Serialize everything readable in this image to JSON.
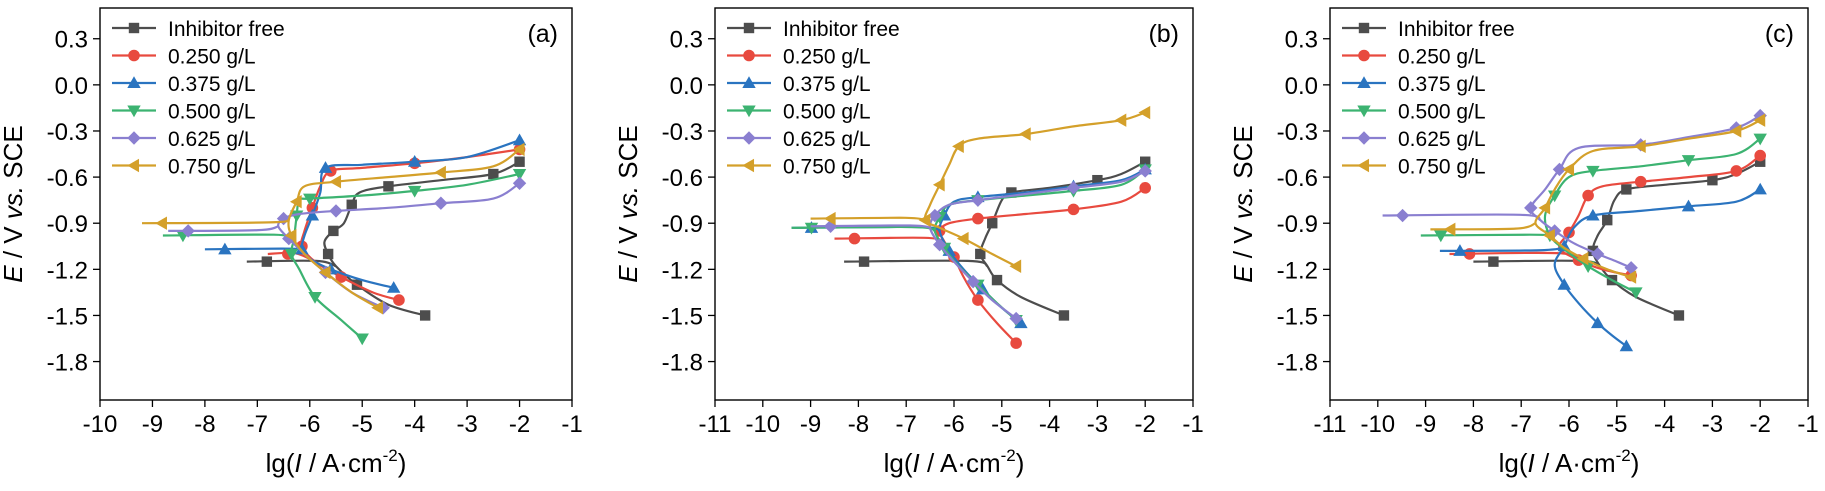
{
  "chart_data": [
    {
      "type": "line",
      "panel_label": "(a)",
      "xlabel": "lg(I / A·cm⁻²)",
      "xlabel_parts": [
        "lg(",
        "I",
        " / A·cm",
        "-2",
        ")"
      ],
      "ylabel": "E / V vs. SCE",
      "ylabel_parts": [
        "E",
        " / V ",
        "vs.",
        " SCE"
      ],
      "xlim": [
        -10,
        -1
      ],
      "ylim": [
        -2.05,
        0.5
      ],
      "xticks": [
        -10,
        -9,
        -8,
        -7,
        -6,
        -5,
        -4,
        -3,
        -2,
        -1
      ],
      "yticks": [
        0.3,
        0.0,
        -0.3,
        -0.6,
        -0.9,
        -1.2,
        -1.5,
        -1.8
      ],
      "ytick_labels": [
        "0.3",
        "0.0",
        "-0.3",
        "-0.6",
        "-0.9",
        "-1.2",
        "-1.5",
        "-1.8"
      ],
      "legend_position": "top-left",
      "series": [
        {
          "name": "Inhibitor free",
          "color": "#4d4d4d",
          "marker": "square",
          "x": [
            -3.8,
            -4.5,
            -5.1,
            -5.5,
            -5.65,
            -5.72,
            -5.55,
            -5.35,
            -5.2,
            -5.05,
            -4.5,
            -3.5,
            -2.5,
            -2.0
          ],
          "y": [
            -1.5,
            -1.43,
            -1.3,
            -1.18,
            -1.1,
            -1.02,
            -0.95,
            -0.9,
            -0.78,
            -0.7,
            -0.66,
            -0.62,
            -0.58,
            -0.5
          ],
          "cathodic_end": [
            -7.2,
            -1.15
          ]
        },
        {
          "name": "0.250 g/L",
          "color": "#e84a3f",
          "marker": "circle",
          "x": [
            -4.3,
            -4.8,
            -5.4,
            -5.9,
            -6.15,
            -6.1,
            -5.95,
            -5.8,
            -5.6,
            -5.0,
            -4.0,
            -3.0,
            -2.0
          ],
          "y": [
            -1.4,
            -1.35,
            -1.25,
            -1.15,
            -1.05,
            -0.95,
            -0.8,
            -0.66,
            -0.56,
            -0.54,
            -0.51,
            -0.47,
            -0.42
          ],
          "cathodic_end": [
            -6.8,
            -1.1
          ]
        },
        {
          "name": "0.375 g/L",
          "color": "#2a74c0",
          "marker": "triangle-up",
          "x": [
            -4.4,
            -5.0,
            -5.6,
            -6.0,
            -6.15,
            -6.1,
            -5.95,
            -5.8,
            -5.7,
            -5.0,
            -4.0,
            -3.0,
            -2.0
          ],
          "y": [
            -1.32,
            -1.27,
            -1.2,
            -1.13,
            -1.07,
            -0.98,
            -0.85,
            -0.7,
            -0.54,
            -0.52,
            -0.5,
            -0.47,
            -0.36
          ],
          "cathodic_end": [
            -8.0,
            -1.07
          ]
        },
        {
          "name": "0.500 g/L",
          "color": "#3cb371",
          "marker": "triangle-down",
          "x": [
            -5.0,
            -5.4,
            -5.9,
            -6.2,
            -6.35,
            -6.3,
            -6.25,
            -6.2,
            -6.0,
            -5.0,
            -4.0,
            -3.0,
            -2.0
          ],
          "y": [
            -1.65,
            -1.53,
            -1.38,
            -1.2,
            -1.1,
            -1.0,
            -0.85,
            -0.75,
            -0.74,
            -0.72,
            -0.69,
            -0.65,
            -0.58
          ],
          "cathodic_end": [
            -8.8,
            -0.98
          ]
        },
        {
          "name": "0.625 g/L",
          "color": "#8a7fd0",
          "marker": "diamond",
          "x": [
            -4.6,
            -5.2,
            -5.7,
            -6.1,
            -6.4,
            -6.6,
            -6.5,
            -6.2,
            -5.5,
            -4.5,
            -3.5,
            -2.5,
            -2.0
          ],
          "y": [
            -1.45,
            -1.35,
            -1.22,
            -1.1,
            -1.0,
            -0.92,
            -0.87,
            -0.84,
            -0.82,
            -0.8,
            -0.77,
            -0.74,
            -0.64
          ],
          "cathodic_end": [
            -8.7,
            -0.95
          ]
        },
        {
          "name": "0.750 g/L",
          "color": "#d4a02a",
          "marker": "triangle-left",
          "x": [
            -4.7,
            -5.2,
            -5.7,
            -6.1,
            -6.35,
            -6.4,
            -6.25,
            -6.1,
            -5.5,
            -4.5,
            -3.5,
            -2.5,
            -2.0
          ],
          "y": [
            -1.45,
            -1.35,
            -1.22,
            -1.1,
            -0.98,
            -0.88,
            -0.76,
            -0.66,
            -0.63,
            -0.6,
            -0.57,
            -0.53,
            -0.42
          ],
          "cathodic_end": [
            -9.2,
            -0.9
          ]
        }
      ]
    },
    {
      "type": "line",
      "panel_label": "(b)",
      "xlabel": "lg(I / A·cm⁻²)",
      "xlabel_parts": [
        "lg(",
        "I",
        " / A·cm",
        "-2",
        ")"
      ],
      "ylabel": "E / V vs. SCE",
      "ylabel_parts": [
        "E",
        " / V ",
        "vs.",
        " SCE"
      ],
      "xlim": [
        -11,
        -1
      ],
      "ylim": [
        -2.05,
        0.5
      ],
      "xticks": [
        -11,
        -10,
        -9,
        -8,
        -7,
        -6,
        -5,
        -4,
        -3,
        -2,
        -1
      ],
      "yticks": [
        0.3,
        0.0,
        -0.3,
        -0.6,
        -0.9,
        -1.2,
        -1.5,
        -1.8
      ],
      "ytick_labels": [
        "0.3",
        "0.0",
        "-0.3",
        "-0.6",
        "-0.9",
        "-1.2",
        "-1.5",
        "-1.8"
      ],
      "legend_position": "top-left",
      "series": [
        {
          "name": "Inhibitor free",
          "color": "#4d4d4d",
          "marker": "square",
          "x": [
            -3.7,
            -4.6,
            -5.1,
            -5.3,
            -5.45,
            -5.35,
            -5.2,
            -5.0,
            -4.8,
            -4.0,
            -3.0,
            -2.5,
            -2.0
          ],
          "y": [
            -1.5,
            -1.38,
            -1.27,
            -1.18,
            -1.1,
            -1.0,
            -0.9,
            -0.75,
            -0.7,
            -0.67,
            -0.62,
            -0.58,
            -0.5
          ],
          "cathodic_end": [
            -8.3,
            -1.15
          ]
        },
        {
          "name": "0.250 g/L",
          "color": "#e84a3f",
          "marker": "circle",
          "x": [
            -4.7,
            -5.1,
            -5.5,
            -5.8,
            -6.0,
            -6.2,
            -6.3,
            -6.1,
            -5.5,
            -4.5,
            -3.5,
            -2.5,
            -2.0
          ],
          "y": [
            -1.68,
            -1.55,
            -1.4,
            -1.25,
            -1.12,
            -1.02,
            -0.95,
            -0.9,
            -0.87,
            -0.84,
            -0.81,
            -0.76,
            -0.67
          ],
          "cathodic_end": [
            -8.5,
            -1.0
          ]
        },
        {
          "name": "0.375 g/L",
          "color": "#2a74c0",
          "marker": "triangle-up",
          "x": [
            -4.6,
            -5.0,
            -5.4,
            -5.8,
            -6.1,
            -6.3,
            -6.2,
            -6.0,
            -5.5,
            -4.5,
            -3.5,
            -2.5,
            -2.0
          ],
          "y": [
            -1.55,
            -1.45,
            -1.33,
            -1.2,
            -1.08,
            -0.95,
            -0.85,
            -0.76,
            -0.73,
            -0.7,
            -0.66,
            -0.62,
            -0.55
          ],
          "cathodic_end": [
            -9.4,
            -0.93
          ]
        },
        {
          "name": "0.500 g/L",
          "color": "#3cb371",
          "marker": "triangle-down",
          "x": [
            -4.7,
            -5.1,
            -5.5,
            -5.9,
            -6.2,
            -6.4,
            -6.3,
            -6.1,
            -5.5,
            -4.5,
            -3.5,
            -2.5,
            -2.0
          ],
          "y": [
            -1.53,
            -1.42,
            -1.3,
            -1.18,
            -1.06,
            -0.95,
            -0.86,
            -0.78,
            -0.75,
            -0.72,
            -0.69,
            -0.65,
            -0.55
          ],
          "cathodic_end": [
            -9.4,
            -0.93
          ]
        },
        {
          "name": "0.625 g/L",
          "color": "#8a7fd0",
          "marker": "diamond",
          "x": [
            -4.7,
            -5.2,
            -5.6,
            -6.0,
            -6.3,
            -6.5,
            -6.4,
            -6.1,
            -5.5,
            -4.5,
            -3.5,
            -2.5,
            -2.0
          ],
          "y": [
            -1.52,
            -1.4,
            -1.28,
            -1.15,
            -1.04,
            -0.93,
            -0.85,
            -0.78,
            -0.75,
            -0.71,
            -0.67,
            -0.63,
            -0.56
          ],
          "cathodic_end": [
            -9.0,
            -0.92
          ]
        },
        {
          "name": "0.750 g/L",
          "color": "#d4a02a",
          "marker": "triangle-left",
          "x": [
            -4.7,
            -5.2,
            -5.8,
            -6.3,
            -6.6,
            -6.5,
            -6.3,
            -6.1,
            -5.9,
            -5.5,
            -4.5,
            -3.5,
            -2.5,
            -2.0
          ],
          "y": [
            -1.18,
            -1.1,
            -1.0,
            -0.93,
            -0.88,
            -0.78,
            -0.65,
            -0.52,
            -0.4,
            -0.35,
            -0.32,
            -0.27,
            -0.23,
            -0.18
          ],
          "cathodic_end": [
            -9.0,
            -0.87
          ]
        }
      ]
    },
    {
      "type": "line",
      "panel_label": "(c)",
      "xlabel": "lg(I / A·cm⁻²)",
      "xlabel_parts": [
        "lg(",
        "I",
        " / A·cm",
        "-2",
        ")"
      ],
      "ylabel": "E / V vs. SCE",
      "ylabel_parts": [
        "E",
        " / V ",
        "vs.",
        " SCE"
      ],
      "xlim": [
        -11,
        -1
      ],
      "ylim": [
        -2.05,
        0.5
      ],
      "xticks": [
        -11,
        -10,
        -9,
        -8,
        -7,
        -6,
        -5,
        -4,
        -3,
        -2,
        -1
      ],
      "yticks": [
        0.3,
        0.0,
        -0.3,
        -0.6,
        -0.9,
        -1.2,
        -1.5,
        -1.8
      ],
      "ytick_labels": [
        "0.3",
        "0.0",
        "-0.3",
        "-0.6",
        "-0.9",
        "-1.2",
        "-1.5",
        "-1.8"
      ],
      "legend_position": "top-left",
      "series": [
        {
          "name": "Inhibitor free",
          "color": "#4d4d4d",
          "marker": "square",
          "x": [
            -3.7,
            -4.6,
            -5.1,
            -5.35,
            -5.5,
            -5.4,
            -5.2,
            -5.05,
            -4.8,
            -4.0,
            -3.0,
            -2.5,
            -2.0
          ],
          "y": [
            -1.5,
            -1.38,
            -1.27,
            -1.18,
            -1.08,
            -0.98,
            -0.88,
            -0.75,
            -0.68,
            -0.65,
            -0.62,
            -0.58,
            -0.5
          ],
          "cathodic_end": [
            -8.0,
            -1.15
          ]
        },
        {
          "name": "0.250 g/L",
          "color": "#e84a3f",
          "marker": "circle",
          "x": [
            -4.7,
            -5.3,
            -5.8,
            -6.2,
            -6.0,
            -5.8,
            -5.6,
            -5.3,
            -4.5,
            -3.5,
            -2.5,
            -2.0
          ],
          "y": [
            -1.24,
            -1.2,
            -1.14,
            -1.06,
            -0.96,
            -0.85,
            -0.72,
            -0.66,
            -0.63,
            -0.6,
            -0.56,
            -0.46
          ],
          "cathodic_end": [
            -8.5,
            -1.1
          ]
        },
        {
          "name": "0.375 g/L",
          "color": "#2a74c0",
          "marker": "triangle-up",
          "x": [
            -4.8,
            -5.1,
            -5.4,
            -5.8,
            -6.1,
            -6.3,
            -6.1,
            -5.9,
            -5.5,
            -4.5,
            -3.5,
            -2.5,
            -2.0
          ],
          "y": [
            -1.7,
            -1.63,
            -1.55,
            -1.42,
            -1.3,
            -1.17,
            -1.05,
            -0.93,
            -0.85,
            -0.82,
            -0.79,
            -0.76,
            -0.68
          ],
          "cathodic_end": [
            -8.7,
            -1.08
          ]
        },
        {
          "name": "0.500 g/L",
          "color": "#3cb371",
          "marker": "triangle-down",
          "x": [
            -4.6,
            -5.1,
            -5.6,
            -6.1,
            -6.4,
            -6.5,
            -6.3,
            -6.0,
            -5.5,
            -4.5,
            -3.5,
            -2.5,
            -2.0
          ],
          "y": [
            -1.35,
            -1.27,
            -1.18,
            -1.07,
            -0.98,
            -0.85,
            -0.72,
            -0.6,
            -0.56,
            -0.53,
            -0.49,
            -0.45,
            -0.35
          ],
          "cathodic_end": [
            -9.1,
            -0.98
          ]
        },
        {
          "name": "0.625 g/L",
          "color": "#8a7fd0",
          "marker": "diamond",
          "x": [
            -4.7,
            -5.0,
            -5.4,
            -5.9,
            -6.3,
            -6.6,
            -6.8,
            -6.5,
            -6.2,
            -5.8,
            -4.5,
            -3.5,
            -2.5,
            -2.0
          ],
          "y": [
            -1.19,
            -1.15,
            -1.1,
            -1.03,
            -0.95,
            -0.88,
            -0.8,
            -0.68,
            -0.55,
            -0.41,
            -0.39,
            -0.34,
            -0.28,
            -0.2
          ],
          "cathodic_end": [
            -9.9,
            -0.85
          ]
        },
        {
          "name": "0.750 g/L",
          "color": "#d4a02a",
          "marker": "triangle-left",
          "x": [
            -4.7,
            -5.2,
            -5.7,
            -6.1,
            -6.4,
            -6.7,
            -6.5,
            -6.3,
            -6.0,
            -5.5,
            -4.5,
            -3.5,
            -2.5,
            -2.0
          ],
          "y": [
            -1.25,
            -1.2,
            -1.13,
            -1.06,
            -0.98,
            -0.9,
            -0.8,
            -0.68,
            -0.55,
            -0.43,
            -0.4,
            -0.35,
            -0.3,
            -0.23
          ],
          "cathodic_end": [
            -8.9,
            -0.94
          ]
        }
      ]
    }
  ]
}
